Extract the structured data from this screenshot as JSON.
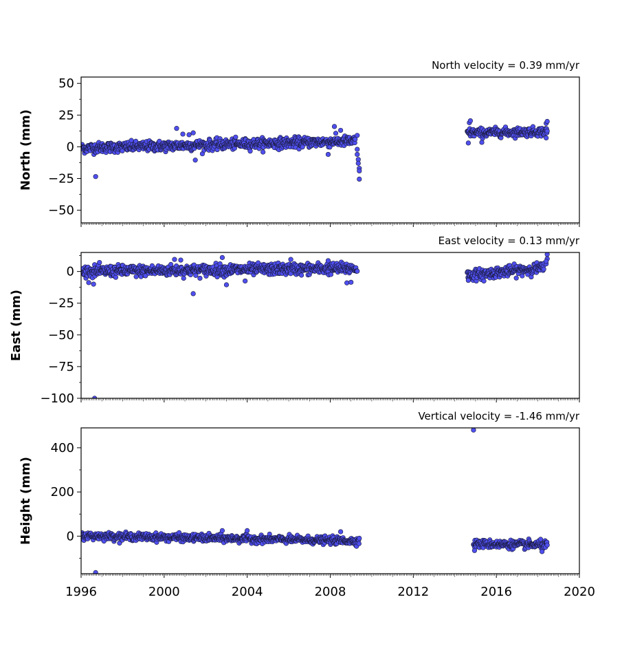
{
  "chart_data": [
    {
      "type": "scatter",
      "title": "North velocity = 0.39 mm/yr",
      "xlabel": "",
      "ylabel": "North (mm)",
      "xlim": [
        1996,
        2020
      ],
      "ylim": [
        -60,
        55
      ],
      "yticks": [
        50,
        25,
        0,
        -25,
        -50
      ],
      "ytick_labels": [
        "50",
        "25",
        "0",
        "−25",
        "−50"
      ],
      "series_color": "#4f4fef",
      "segments": [
        {
          "x_start": 1996.0,
          "x_end": 2009.2,
          "y_start": -1.0,
          "y_end": 4.5,
          "noise": 2.0
        },
        {
          "x_start": 2014.6,
          "x_end": 2018.45,
          "y_start": 11.0,
          "y_end": 12.0,
          "noise": 1.7
        }
      ],
      "points": [
        {
          "x": 1996.7,
          "y": -23.5
        },
        {
          "x": 2000.6,
          "y": 14.5
        },
        {
          "x": 2001.4,
          "y": 11.0
        },
        {
          "x": 2001.5,
          "y": -10.5
        },
        {
          "x": 2001.2,
          "y": 9.5
        },
        {
          "x": 2000.9,
          "y": 10.0
        },
        {
          "x": 2008.2,
          "y": 16.0
        },
        {
          "x": 2008.5,
          "y": 13.0
        },
        {
          "x": 2007.9,
          "y": -6.0
        },
        {
          "x": 2009.3,
          "y": -2.0
        },
        {
          "x": 2009.3,
          "y": -6.0
        },
        {
          "x": 2009.35,
          "y": -10.0
        },
        {
          "x": 2009.35,
          "y": -13.0
        },
        {
          "x": 2009.4,
          "y": -17.0
        },
        {
          "x": 2009.4,
          "y": -19.0
        },
        {
          "x": 2009.4,
          "y": -25.5
        },
        {
          "x": 2009.3,
          "y": 9.0
        },
        {
          "x": 2014.65,
          "y": 3.0
        },
        {
          "x": 2014.7,
          "y": 19.0
        },
        {
          "x": 2014.75,
          "y": 20.5
        },
        {
          "x": 2015.3,
          "y": 3.5
        },
        {
          "x": 2018.4,
          "y": 18.5
        },
        {
          "x": 2018.45,
          "y": 20.0
        },
        {
          "x": 2018.4,
          "y": 7.0
        }
      ]
    },
    {
      "type": "scatter",
      "title": "East velocity = 0.13 mm/yr",
      "xlabel": "",
      "ylabel": "East (mm)",
      "xlim": [
        1996,
        2020
      ],
      "ylim": [
        -100,
        15
      ],
      "yticks": [
        0,
        -25,
        -50,
        -75,
        -100
      ],
      "ytick_labels": [
        "0",
        "−25",
        "−50",
        "−75",
        "−100"
      ],
      "series_color": "#4f4fef",
      "segments": [
        {
          "x_start": 1996.0,
          "x_end": 2009.3,
          "y_start": 0.0,
          "y_end": 2.5,
          "noise": 2.2
        },
        {
          "x_start": 2014.6,
          "x_end": 2018.3,
          "y_start": -3.0,
          "y_end": 3.0,
          "noise": 2.0
        }
      ],
      "points": [
        {
          "x": 1996.65,
          "y": -100.0
        },
        {
          "x": 1996.6,
          "y": -10.0
        },
        {
          "x": 2001.4,
          "y": -17.5
        },
        {
          "x": 2000.5,
          "y": 9.5
        },
        {
          "x": 2000.8,
          "y": 9.0
        },
        {
          "x": 2002.8,
          "y": 11.0
        },
        {
          "x": 2003.0,
          "y": -10.5
        },
        {
          "x": 2003.9,
          "y": -7.5
        },
        {
          "x": 2006.1,
          "y": 9.5
        },
        {
          "x": 2007.9,
          "y": 8.5
        },
        {
          "x": 2008.8,
          "y": -9.0
        },
        {
          "x": 2009.0,
          "y": -8.5
        },
        {
          "x": 2014.65,
          "y": -7.0
        },
        {
          "x": 2015.4,
          "y": -7.5
        },
        {
          "x": 2018.4,
          "y": 6.0
        },
        {
          "x": 2018.45,
          "y": 10.0
        },
        {
          "x": 2018.45,
          "y": 13.5
        },
        {
          "x": 2018.4,
          "y": 8.0
        }
      ]
    },
    {
      "type": "scatter",
      "title": "Vertical velocity = -1.46 mm/yr",
      "xlabel": "",
      "ylabel": "Height (mm)",
      "xlim": [
        1996,
        2020
      ],
      "ylim": [
        -170,
        490
      ],
      "yticks": [
        400,
        200,
        0
      ],
      "ytick_labels": [
        "400",
        "200",
        "0"
      ],
      "series_color": "#4f4fef",
      "segments": [
        {
          "x_start": 1996.0,
          "x_end": 2009.4,
          "y_start": 2.0,
          "y_end": -22.0,
          "noise": 8.0
        },
        {
          "x_start": 2014.9,
          "x_end": 2018.45,
          "y_start": -35.0,
          "y_end": -40.0,
          "noise": 9.0
        }
      ],
      "points": [
        {
          "x": 1996.7,
          "y": -165.0
        },
        {
          "x": 2014.9,
          "y": 480.0
        },
        {
          "x": 2002.8,
          "y": 25.0
        },
        {
          "x": 2004.0,
          "y": 25.0
        },
        {
          "x": 2008.5,
          "y": 20.0
        },
        {
          "x": 2014.95,
          "y": -65.0
        },
        {
          "x": 2018.2,
          "y": -70.0
        }
      ]
    }
  ],
  "x_axis": {
    "ticks": [
      1996,
      2000,
      2004,
      2008,
      2012,
      2016,
      2020
    ],
    "tick_labels": [
      "1996",
      "2000",
      "2004",
      "2008",
      "2012",
      "2016",
      "2020"
    ]
  }
}
